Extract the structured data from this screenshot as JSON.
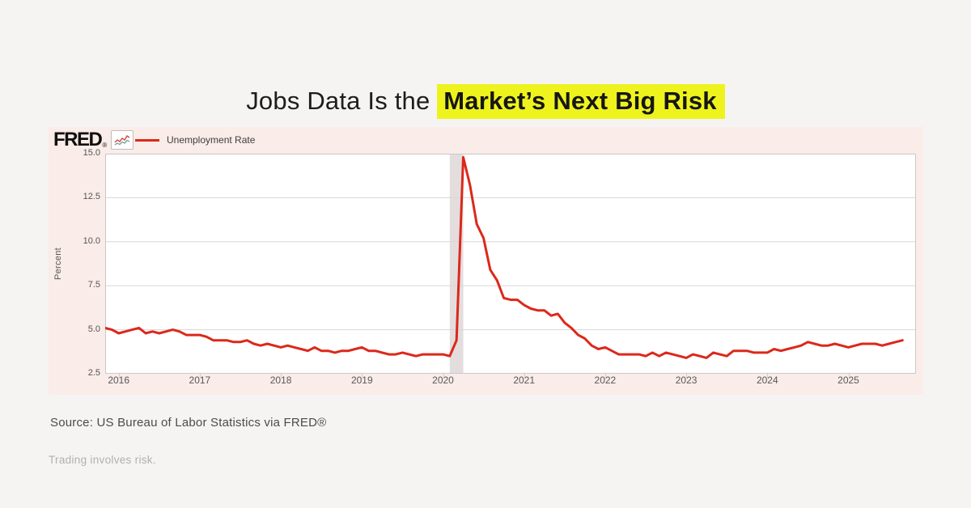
{
  "title": {
    "normal_part": "Jobs Data Is the ",
    "highlight_part": "Market’s Next Big Risk",
    "highlight_color": "#eef31e"
  },
  "chart": {
    "brand": "FRED",
    "brand_mark": "®",
    "legend_label": "Unemployment Rate",
    "line_color": "#dc281b",
    "card_background": "#f9ece9",
    "plot_background": "#ffffff",
    "grid_color": "#d7d7d7",
    "border_color": "#c9c9c9",
    "recession_band_color": "#e3dedd"
  },
  "chart_data": {
    "type": "line",
    "title": "Unemployment Rate",
    "xlabel": "",
    "ylabel": "Percent",
    "frequency": "monthly",
    "x_start_decimal_year": 2015.83333,
    "x_step_years": 0.0833333,
    "x_range": [
      2015.83333,
      2025.83333
    ],
    "ylim": [
      2.5,
      15.0
    ],
    "y_ticks": [
      2.5,
      5.0,
      7.5,
      10.0,
      12.5,
      15.0
    ],
    "x_ticks": [
      2016,
      2017,
      2018,
      2019,
      2020,
      2021,
      2022,
      2023,
      2024,
      2025
    ],
    "grid": "horizontal",
    "legend_position": "top-left",
    "recession_band": {
      "start": 2020.0833,
      "end": 2020.25
    },
    "series": [
      {
        "name": "Unemployment Rate",
        "color": "#dc281b",
        "values": [
          5.1,
          5.0,
          4.8,
          4.9,
          5.0,
          5.1,
          4.8,
          4.9,
          4.8,
          4.9,
          5.0,
          4.9,
          4.7,
          4.7,
          4.7,
          4.6,
          4.4,
          4.4,
          4.4,
          4.3,
          4.3,
          4.4,
          4.2,
          4.1,
          4.2,
          4.1,
          4.0,
          4.1,
          4.0,
          3.9,
          3.8,
          4.0,
          3.8,
          3.8,
          3.7,
          3.8,
          3.8,
          3.9,
          4.0,
          3.8,
          3.8,
          3.7,
          3.6,
          3.6,
          3.7,
          3.6,
          3.5,
          3.6,
          3.6,
          3.6,
          3.6,
          3.5,
          4.4,
          14.8,
          13.2,
          11.0,
          10.2,
          8.4,
          7.8,
          6.8,
          6.7,
          6.7,
          6.4,
          6.2,
          6.1,
          6.1,
          5.8,
          5.9,
          5.4,
          5.1,
          4.7,
          4.5,
          4.1,
          3.9,
          4.0,
          3.8,
          3.6,
          3.6,
          3.6,
          3.6,
          3.5,
          3.7,
          3.5,
          3.7,
          3.6,
          3.5,
          3.4,
          3.6,
          3.5,
          3.4,
          3.7,
          3.6,
          3.5,
          3.8,
          3.8,
          3.8,
          3.7,
          3.7,
          3.7,
          3.9,
          3.8,
          3.9,
          4.0,
          4.1,
          4.3,
          4.2,
          4.1,
          4.1,
          4.2,
          4.1,
          4.0,
          4.1,
          4.2,
          4.2,
          4.2,
          4.1,
          4.2,
          4.3,
          4.4
        ]
      }
    ]
  },
  "footer": {
    "source": "Source: US Bureau of Labor Statistics via FRED®",
    "disclaimer": "Trading involves risk."
  }
}
